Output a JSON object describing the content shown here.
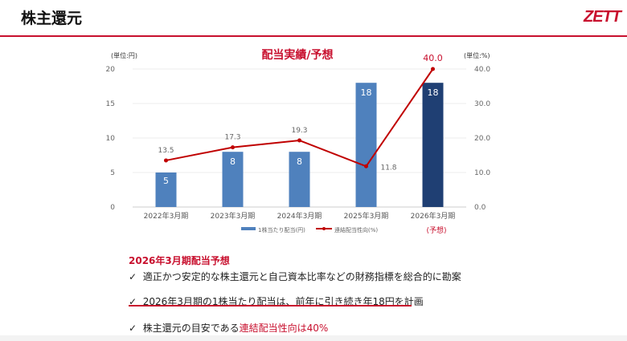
{
  "header": {
    "title": "株主還元",
    "logo": "ZETT"
  },
  "chart_data": {
    "type": "bar+line",
    "title": "配当実績/予想",
    "left_unit": "(単位:円)",
    "right_unit": "(単位:%)",
    "categories": [
      "2022年3月期",
      "2023年3月期",
      "2024年3月期",
      "2025年3月期",
      "2026年3月期"
    ],
    "forecast_note": "(予想)",
    "left_ylim": [
      0,
      20
    ],
    "left_ticks": [
      "0",
      "5",
      "10",
      "15",
      "20"
    ],
    "right_ylim": [
      0,
      40
    ],
    "right_ticks": [
      "0.0",
      "10.0",
      "20.0",
      "30.0",
      "40.0"
    ],
    "series": [
      {
        "name": "1株当たり配当(円)",
        "type": "bar",
        "values": [
          5,
          8,
          8,
          18,
          18
        ],
        "labels": [
          "5",
          "8",
          "8",
          "18",
          "18"
        ],
        "color": "#4f81bd",
        "forecast_color": "#1f3f73"
      },
      {
        "name": "連結配当性向(%)",
        "type": "line",
        "values": [
          13.5,
          17.3,
          19.3,
          11.8,
          40.0
        ],
        "labels": [
          "13.5",
          "17.3",
          "19.3",
          "11.8",
          "40.0"
        ],
        "color": "#c00000"
      }
    ],
    "grid": true,
    "legend": "bottom"
  },
  "forecast": {
    "heading": "2026年3月期配当予想",
    "check": "✓",
    "items": [
      {
        "text": "適正かつ安定的な株主還元と自己資本比率などの財務指標を総合的に勘案",
        "red": ""
      },
      {
        "text": "2026年3月期の1株当たり配当は、前年に引き続き年18円を計画",
        "red": ""
      },
      {
        "text": "株主還元の目安である",
        "red": "連結配当性向は40%"
      }
    ]
  }
}
